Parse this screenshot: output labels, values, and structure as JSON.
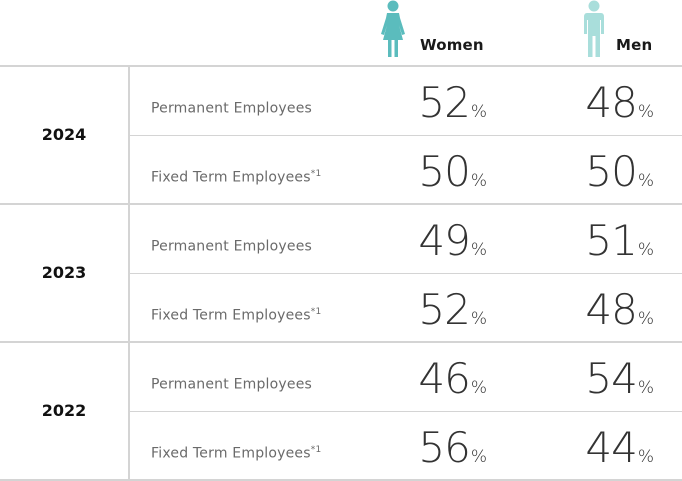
{
  "columns": {
    "women": {
      "label": "Women",
      "color": "#5bbcbd"
    },
    "men": {
      "label": "Men",
      "color": "#a9dedb"
    }
  },
  "groups": [
    {
      "year": "2024",
      "rows": [
        {
          "category": "Permanent Employees",
          "note": "",
          "women": "52",
          "men": "48"
        },
        {
          "category": "Fixed Term Employees",
          "note": "*1",
          "women": "50",
          "men": "50"
        }
      ]
    },
    {
      "year": "2023",
      "rows": [
        {
          "category": "Permanent Employees",
          "note": "",
          "women": "49",
          "men": "51"
        },
        {
          "category": "Fixed Term Employees",
          "note": "*1",
          "women": "52",
          "men": "48"
        }
      ]
    },
    {
      "year": "2022",
      "rows": [
        {
          "category": "Permanent Employees",
          "note": "",
          "women": "46",
          "men": "54"
        },
        {
          "category": "Fixed Term Employees",
          "note": "*1",
          "women": "56",
          "men": "44"
        }
      ]
    }
  ],
  "unit": "%"
}
